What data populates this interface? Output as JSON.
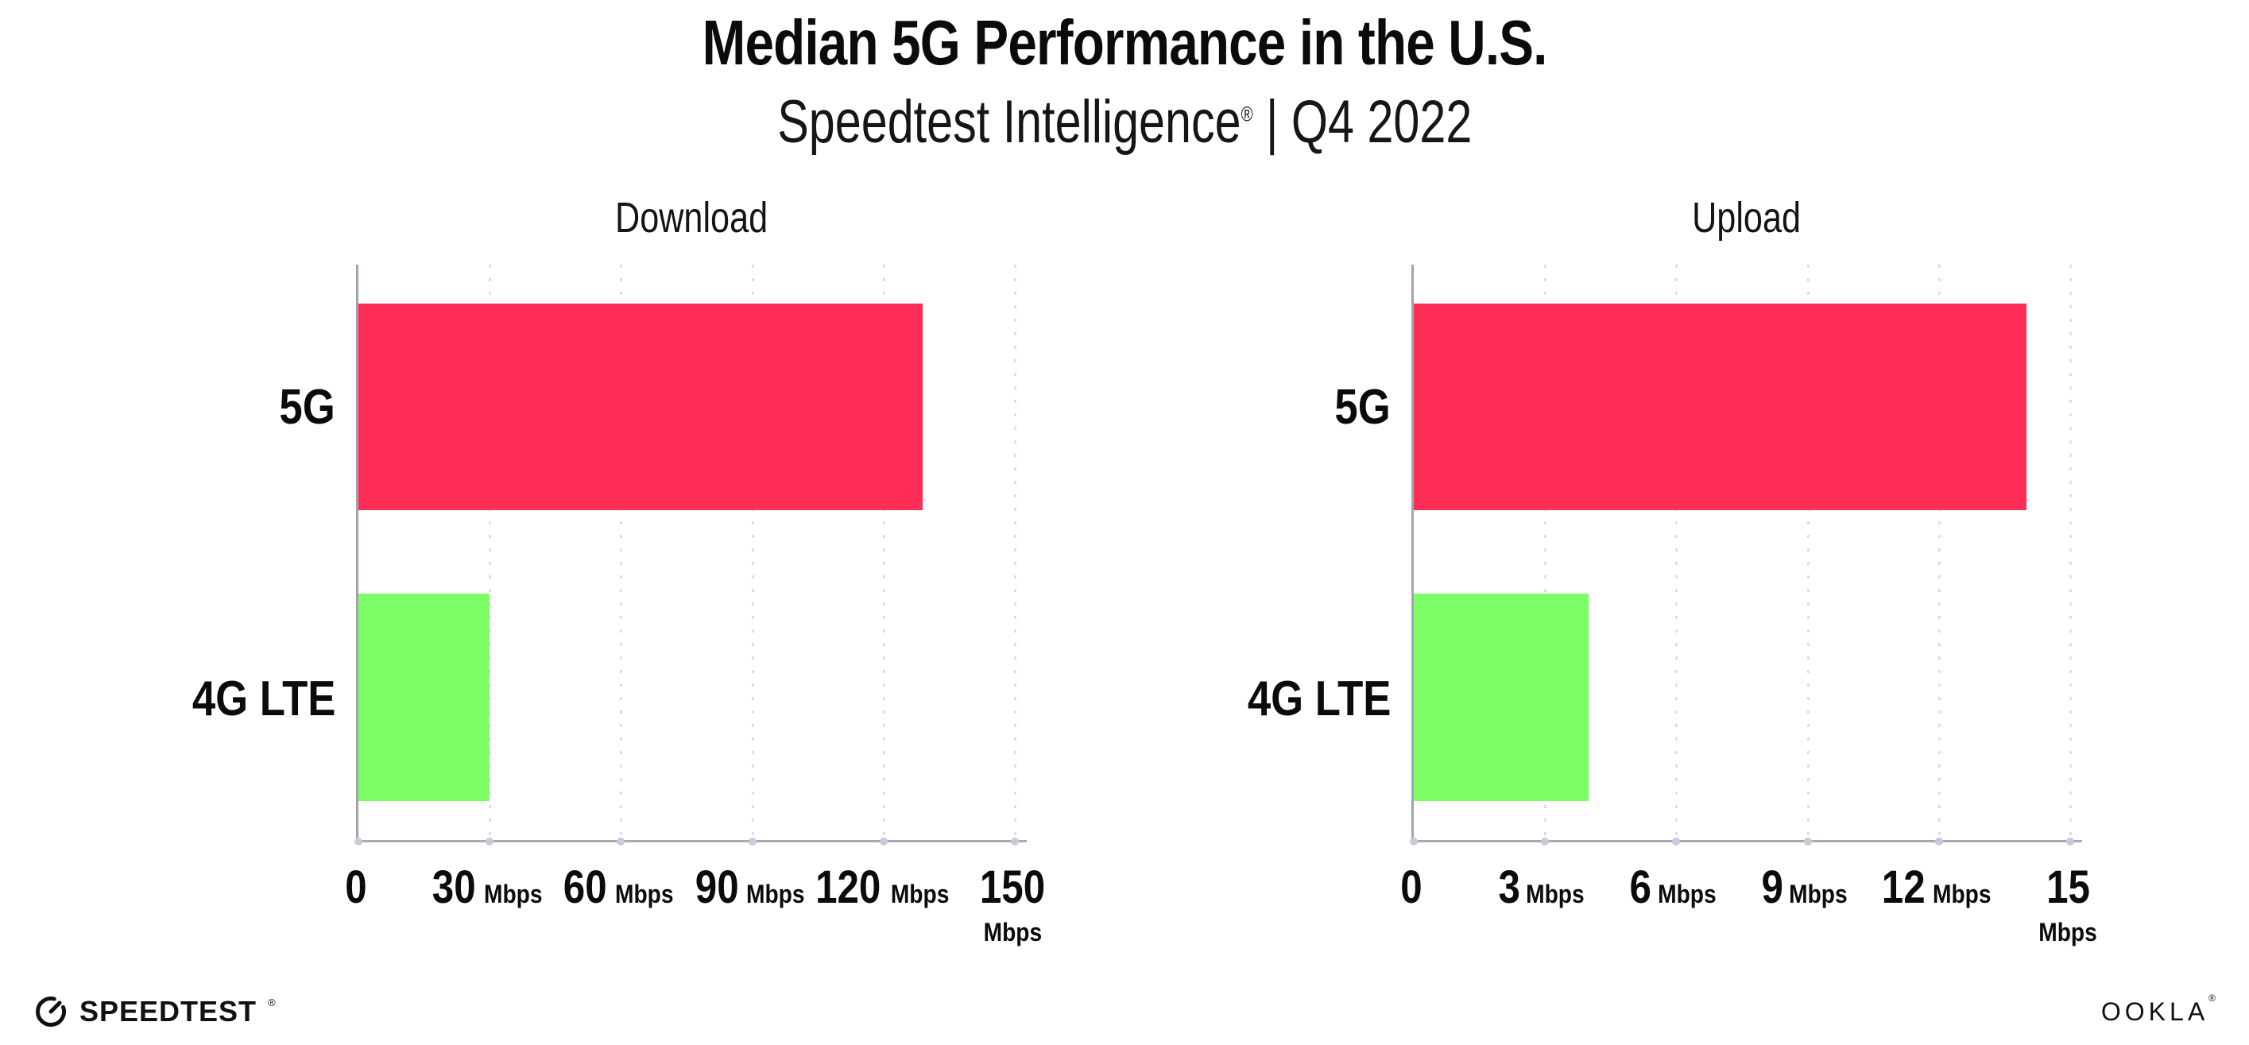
{
  "header": {
    "title": "Median 5G Performance in the U.S.",
    "subtitle_brand": "Speedtest Intelligence",
    "subtitle_mark": "®",
    "subtitle_rest": " | Q4 2022"
  },
  "chart_data": [
    {
      "type": "bar",
      "orientation": "horizontal",
      "title": "Download",
      "categories": [
        "5G",
        "4G LTE"
      ],
      "values": [
        129,
        30
      ],
      "unit": "Mbps",
      "xlabel": "",
      "ylabel": "",
      "xlim": [
        0,
        150
      ],
      "xticks": [
        0,
        30,
        60,
        90,
        120,
        150
      ],
      "bar_colors": [
        "#FF2E56",
        "#7DFE66"
      ],
      "grid": "vertical-dotted",
      "legend": "none"
    },
    {
      "type": "bar",
      "orientation": "horizontal",
      "title": "Upload",
      "categories": [
        "5G",
        "4G LTE"
      ],
      "values": [
        14,
        4
      ],
      "unit": "Mbps",
      "xlabel": "",
      "ylabel": "",
      "xlim": [
        0,
        15
      ],
      "xticks": [
        0,
        3,
        6,
        9,
        12,
        15
      ],
      "bar_colors": [
        "#FF2E56",
        "#7DFE66"
      ],
      "grid": "vertical-dotted",
      "legend": "none"
    }
  ],
  "footer": {
    "speedtest_label": "SPEEDTEST",
    "speedtest_mark": "®",
    "ookla_label": "OOKLA",
    "ookla_mark": "®"
  },
  "colors": {
    "bar_5g": "#FF2E56",
    "bar_4g_lte": "#7DFE66",
    "gridline": "#DEDEEA",
    "axis": "#A3A3AD",
    "text": "#0B0B0B",
    "background": "#FFFFFF"
  },
  "icons": {
    "speedtest_gauge": "gauge-icon"
  }
}
